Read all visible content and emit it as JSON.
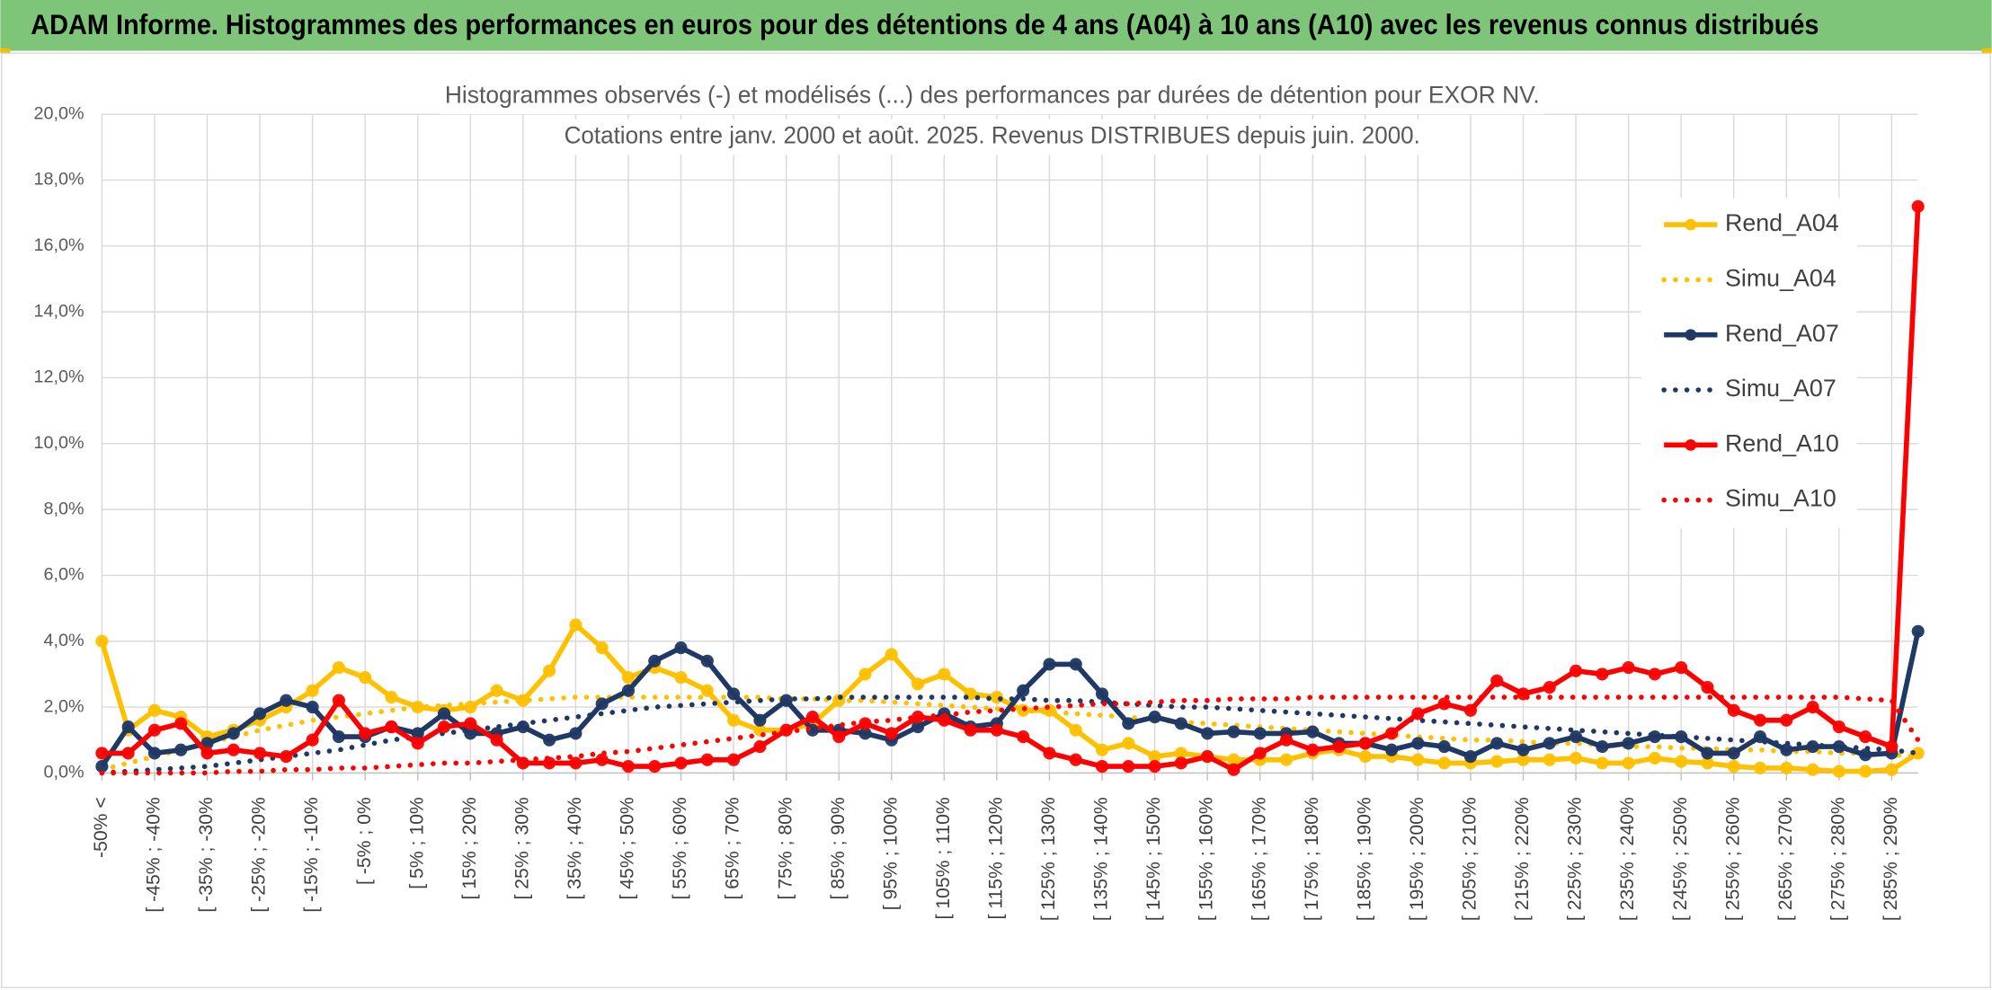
{
  "chart_data": {
    "type": "line",
    "title": "ADAM Informe. Histogrammes des performances en euros pour des détentions de 4 ans (A04) à 10 ans (A10) avec les revenus connus distribués",
    "subtitle": [
      "Histogrammes observés (-) et modélisés (...) des performances par durées de détention pour EXOR NV.",
      "Cotations entre janv. 2000 et août. 2025. Revenus DISTRIBUES depuis juin. 2000."
    ],
    "categories": [
      "-50% <",
      null,
      "[ -45% ; -40%",
      null,
      "[ -35% ; -30%",
      null,
      "[ -25% ; -20%",
      null,
      "[ -15% ; -10%",
      null,
      "[ -5% ; 0%",
      null,
      "[ 5% ; 10%",
      null,
      "[ 15% ; 20%",
      null,
      "[ 25% ; 30%",
      null,
      "[ 35% ; 40%",
      null,
      "[ 45% ; 50%",
      null,
      "[ 55% ; 60%",
      null,
      "[ 65% ; 70%",
      null,
      "[ 75% ; 80%",
      null,
      "[ 85% ; 90%",
      null,
      "[ 95% ; 100%",
      null,
      "[ 105% ; 110%",
      null,
      "[ 115% ; 120%",
      null,
      "[ 125% ; 130%",
      null,
      "[ 135% ; 140%",
      null,
      "[ 145% ; 150%",
      null,
      "[ 155% ; 160%",
      null,
      "[ 165% ; 170%",
      null,
      "[ 175% ; 180%",
      null,
      "[ 185% ; 190%",
      null,
      "[ 195% ; 200%",
      null,
      "[ 205% ; 210%",
      null,
      "[ 215% ; 220%",
      null,
      "[ 225% ; 230%",
      null,
      "[ 235% ; 240%",
      null,
      "[ 245% ; 250%",
      null,
      "[ 255% ; 260%",
      null,
      "[ 265% ; 270%",
      null,
      "[ 275% ; 280%",
      null,
      "[ 285% ; 290%",
      null
    ],
    "series": [
      {
        "name": "Rend_A04",
        "color": "#ffc000",
        "style": "solid",
        "markers": true,
        "values": [
          4.0,
          1.3,
          1.9,
          1.7,
          1.1,
          1.3,
          1.6,
          2.0,
          2.5,
          3.2,
          2.9,
          2.3,
          2.0,
          1.9,
          2.0,
          2.5,
          2.2,
          3.1,
          4.5,
          3.8,
          2.9,
          3.2,
          2.9,
          2.5,
          1.6,
          1.3,
          1.3,
          1.5,
          2.2,
          3.0,
          3.6,
          2.7,
          3.0,
          2.4,
          2.3,
          1.9,
          1.9,
          1.3,
          0.7,
          0.9,
          0.5,
          0.6,
          0.5,
          0.4,
          0.4,
          0.4,
          0.6,
          0.7,
          0.5,
          0.5,
          0.4,
          0.3,
          0.3,
          0.35,
          0.4,
          0.4,
          0.45,
          0.3,
          0.3,
          0.45,
          0.35,
          0.3,
          0.2,
          0.15,
          0.15,
          0.1,
          0.05,
          0.05,
          0.1,
          0.6
        ]
      },
      {
        "name": "Simu_A04",
        "color": "#ffc000",
        "style": "dotted",
        "markers": false,
        "values": [
          0.1,
          0.3,
          0.5,
          0.7,
          0.9,
          1.1,
          1.3,
          1.45,
          1.6,
          1.7,
          1.8,
          1.9,
          2.0,
          2.05,
          2.1,
          2.15,
          2.2,
          2.25,
          2.3,
          2.3,
          2.3,
          2.3,
          2.3,
          2.3,
          2.3,
          2.3,
          2.25,
          2.25,
          2.2,
          2.2,
          2.15,
          2.1,
          2.05,
          2.0,
          1.95,
          1.9,
          1.85,
          1.8,
          1.75,
          1.7,
          1.6,
          1.55,
          1.5,
          1.45,
          1.4,
          1.35,
          1.3,
          1.25,
          1.2,
          1.15,
          1.1,
          1.05,
          1.0,
          1.0,
          0.95,
          0.9,
          0.9,
          0.85,
          0.8,
          0.8,
          0.75,
          0.75,
          0.7,
          0.7,
          0.65,
          0.65,
          0.6,
          0.6,
          0.55,
          0.5
        ]
      },
      {
        "name": "Rend_A07",
        "color": "#1f3864",
        "style": "solid",
        "markers": true,
        "values": [
          0.2,
          1.4,
          0.6,
          0.7,
          0.9,
          1.2,
          1.8,
          2.2,
          2.0,
          1.1,
          1.1,
          1.4,
          1.2,
          1.8,
          1.2,
          1.2,
          1.4,
          1.0,
          1.2,
          2.1,
          2.5,
          3.4,
          3.8,
          3.4,
          2.4,
          1.6,
          2.2,
          1.3,
          1.3,
          1.2,
          1.0,
          1.4,
          1.8,
          1.4,
          1.5,
          2.5,
          3.3,
          3.3,
          2.4,
          1.5,
          1.7,
          1.5,
          1.2,
          1.25,
          1.2,
          1.2,
          1.25,
          0.9,
          0.9,
          0.7,
          0.9,
          0.8,
          0.5,
          0.9,
          0.7,
          0.9,
          1.1,
          0.8,
          0.9,
          1.1,
          1.1,
          0.6,
          0.6,
          1.1,
          0.7,
          0.8,
          0.8,
          0.55,
          0.6,
          4.3
        ]
      },
      {
        "name": "Simu_A07",
        "color": "#1f3864",
        "style": "dotted",
        "markers": false,
        "values": [
          0.0,
          0.05,
          0.1,
          0.15,
          0.2,
          0.3,
          0.4,
          0.5,
          0.6,
          0.7,
          0.85,
          1.0,
          1.1,
          1.2,
          1.3,
          1.4,
          1.5,
          1.6,
          1.7,
          1.8,
          1.9,
          2.0,
          2.05,
          2.1,
          2.15,
          2.2,
          2.25,
          2.25,
          2.3,
          2.3,
          2.3,
          2.3,
          2.3,
          2.3,
          2.25,
          2.25,
          2.2,
          2.2,
          2.15,
          2.1,
          2.05,
          2.0,
          2.0,
          1.95,
          1.9,
          1.85,
          1.8,
          1.75,
          1.7,
          1.65,
          1.6,
          1.55,
          1.5,
          1.45,
          1.4,
          1.35,
          1.3,
          1.25,
          1.2,
          1.15,
          1.1,
          1.05,
          1.0,
          0.95,
          0.9,
          0.85,
          0.8,
          0.75,
          0.7,
          0.6
        ]
      },
      {
        "name": "Rend_A10",
        "color": "#ff0000",
        "style": "solid",
        "markers": true,
        "values": [
          0.6,
          0.6,
          1.3,
          1.5,
          0.6,
          0.7,
          0.6,
          0.5,
          1.0,
          2.2,
          1.2,
          1.4,
          0.9,
          1.4,
          1.5,
          1.0,
          0.3,
          0.3,
          0.3,
          0.4,
          0.2,
          0.2,
          0.3,
          0.4,
          0.4,
          0.8,
          1.3,
          1.7,
          1.1,
          1.5,
          1.2,
          1.7,
          1.6,
          1.3,
          1.3,
          1.1,
          0.6,
          0.4,
          0.2,
          0.2,
          0.2,
          0.3,
          0.5,
          0.1,
          0.6,
          1.0,
          0.7,
          0.8,
          0.9,
          1.2,
          1.8,
          2.1,
          1.9,
          2.8,
          2.4,
          2.6,
          3.1,
          3.0,
          3.2,
          3.0,
          3.2,
          2.6,
          1.9,
          1.6,
          1.6,
          2.0,
          1.4,
          1.1,
          0.8,
          17.2
        ]
      },
      {
        "name": "Simu_A10",
        "color": "#ff0000",
        "style": "dotted",
        "markers": false,
        "values": [
          0.0,
          0.0,
          0.0,
          0.0,
          0.0,
          0.05,
          0.05,
          0.1,
          0.1,
          0.15,
          0.15,
          0.2,
          0.25,
          0.3,
          0.3,
          0.35,
          0.4,
          0.45,
          0.5,
          0.6,
          0.65,
          0.75,
          0.85,
          0.95,
          1.05,
          1.15,
          1.25,
          1.35,
          1.45,
          1.55,
          1.6,
          1.7,
          1.75,
          1.85,
          1.9,
          1.95,
          2.0,
          2.05,
          2.1,
          2.1,
          2.15,
          2.2,
          2.2,
          2.25,
          2.25,
          2.25,
          2.3,
          2.3,
          2.3,
          2.3,
          2.3,
          2.3,
          2.3,
          2.3,
          2.3,
          2.3,
          2.3,
          2.3,
          2.3,
          2.3,
          2.3,
          2.3,
          2.3,
          2.3,
          2.3,
          2.3,
          2.3,
          2.25,
          2.2,
          1.0
        ]
      }
    ],
    "ylim": [
      0,
      20
    ],
    "yticks": [
      {
        "value": 0,
        "label": "0,0%"
      },
      {
        "value": 2,
        "label": "2,0%"
      },
      {
        "value": 4,
        "label": "4,0%"
      },
      {
        "value": 6,
        "label": "6,0%"
      },
      {
        "value": 8,
        "label": "8,0%"
      },
      {
        "value": 10,
        "label": "10,0%"
      },
      {
        "value": 12,
        "label": "12,0%"
      },
      {
        "value": 14,
        "label": "14,0%"
      },
      {
        "value": 16,
        "label": "16,0%"
      },
      {
        "value": 18,
        "label": "18,0%"
      },
      {
        "value": 20,
        "label": "20,0%"
      }
    ],
    "grid": true,
    "legend": "right"
  }
}
